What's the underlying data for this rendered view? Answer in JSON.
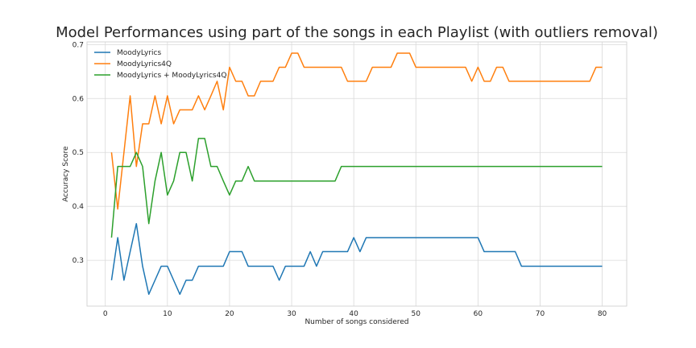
{
  "chart_data": {
    "type": "line",
    "title": "Model Performances using part of the songs in each Playlist (with outliers removal)",
    "xlabel": "Number of songs considered",
    "ylabel": "Accuracy Score",
    "xlim": [
      -2.95,
      83.95
    ],
    "ylim": [
      0.215,
      0.705
    ],
    "xticks": [
      0,
      10,
      20,
      30,
      40,
      50,
      60,
      70,
      80
    ],
    "xtick_labels": [
      "0",
      "10",
      "20",
      "30",
      "40",
      "50",
      "60",
      "70",
      "80"
    ],
    "yticks": [
      0.3,
      0.4,
      0.5,
      0.6,
      0.7
    ],
    "ytick_labels": [
      "0.3",
      "0.4",
      "0.5",
      "0.6",
      "0.7"
    ],
    "grid": true,
    "legend_position": "top-left",
    "x": [
      1,
      2,
      3,
      4,
      5,
      6,
      7,
      8,
      9,
      10,
      11,
      12,
      13,
      14,
      15,
      16,
      17,
      18,
      19,
      20,
      21,
      22,
      23,
      24,
      25,
      26,
      27,
      28,
      29,
      30,
      31,
      32,
      33,
      34,
      35,
      36,
      37,
      38,
      39,
      40,
      41,
      42,
      43,
      44,
      45,
      46,
      47,
      48,
      49,
      50,
      51,
      52,
      53,
      54,
      55,
      56,
      57,
      58,
      59,
      60,
      61,
      62,
      63,
      64,
      65,
      66,
      67,
      68,
      69,
      70,
      71,
      72,
      73,
      74,
      75,
      76,
      77,
      78,
      79,
      80
    ],
    "series": [
      {
        "name": "MoodyLyrics",
        "color": "#1f77b4",
        "values": [
          0.263,
          0.342,
          0.263,
          0.316,
          0.368,
          0.289,
          0.237,
          0.263,
          0.289,
          0.289,
          0.263,
          0.237,
          0.263,
          0.263,
          0.289,
          0.289,
          0.289,
          0.289,
          0.289,
          0.316,
          0.316,
          0.316,
          0.289,
          0.289,
          0.289,
          0.289,
          0.289,
          0.263,
          0.289,
          0.289,
          0.289,
          0.289,
          0.316,
          0.289,
          0.316,
          0.316,
          0.316,
          0.316,
          0.316,
          0.342,
          0.316,
          0.342,
          0.342,
          0.342,
          0.342,
          0.342,
          0.342,
          0.342,
          0.342,
          0.342,
          0.342,
          0.342,
          0.342,
          0.342,
          0.342,
          0.342,
          0.342,
          0.342,
          0.342,
          0.342,
          0.316,
          0.316,
          0.316,
          0.316,
          0.316,
          0.316,
          0.289,
          0.289,
          0.289,
          0.289,
          0.289,
          0.289,
          0.289,
          0.289,
          0.289,
          0.289,
          0.289,
          0.289,
          0.289,
          0.289
        ]
      },
      {
        "name": "MoodyLyrics4Q",
        "color": "#ff7f0e",
        "values": [
          0.5,
          0.395,
          0.5,
          0.605,
          0.474,
          0.553,
          0.553,
          0.605,
          0.553,
          0.605,
          0.553,
          0.579,
          0.579,
          0.579,
          0.605,
          0.579,
          0.605,
          0.632,
          0.579,
          0.658,
          0.632,
          0.632,
          0.605,
          0.605,
          0.632,
          0.632,
          0.632,
          0.658,
          0.658,
          0.684,
          0.684,
          0.658,
          0.658,
          0.658,
          0.658,
          0.658,
          0.658,
          0.658,
          0.632,
          0.632,
          0.632,
          0.632,
          0.658,
          0.658,
          0.658,
          0.658,
          0.684,
          0.684,
          0.684,
          0.658,
          0.658,
          0.658,
          0.658,
          0.658,
          0.658,
          0.658,
          0.658,
          0.658,
          0.632,
          0.658,
          0.632,
          0.632,
          0.658,
          0.658,
          0.632,
          0.632,
          0.632,
          0.632,
          0.632,
          0.632,
          0.632,
          0.632,
          0.632,
          0.632,
          0.632,
          0.632,
          0.632,
          0.632,
          0.658,
          0.658
        ]
      },
      {
        "name": "MoodyLyrics + MoodyLyrics4Q",
        "color": "#2ca02c",
        "values": [
          0.342,
          0.474,
          0.474,
          0.474,
          0.5,
          0.474,
          0.368,
          0.447,
          0.5,
          0.421,
          0.447,
          0.5,
          0.5,
          0.447,
          0.526,
          0.526,
          0.474,
          0.474,
          0.447,
          0.421,
          0.447,
          0.447,
          0.474,
          0.447,
          0.447,
          0.447,
          0.447,
          0.447,
          0.447,
          0.447,
          0.447,
          0.447,
          0.447,
          0.447,
          0.447,
          0.447,
          0.447,
          0.474,
          0.474,
          0.474,
          0.474,
          0.474,
          0.474,
          0.474,
          0.474,
          0.474,
          0.474,
          0.474,
          0.474,
          0.474,
          0.474,
          0.474,
          0.474,
          0.474,
          0.474,
          0.474,
          0.474,
          0.474,
          0.474,
          0.474,
          0.474,
          0.474,
          0.474,
          0.474,
          0.474,
          0.474,
          0.474,
          0.474,
          0.474,
          0.474,
          0.474,
          0.474,
          0.474,
          0.474,
          0.474,
          0.474,
          0.474,
          0.474,
          0.474,
          0.474
        ]
      }
    ]
  }
}
